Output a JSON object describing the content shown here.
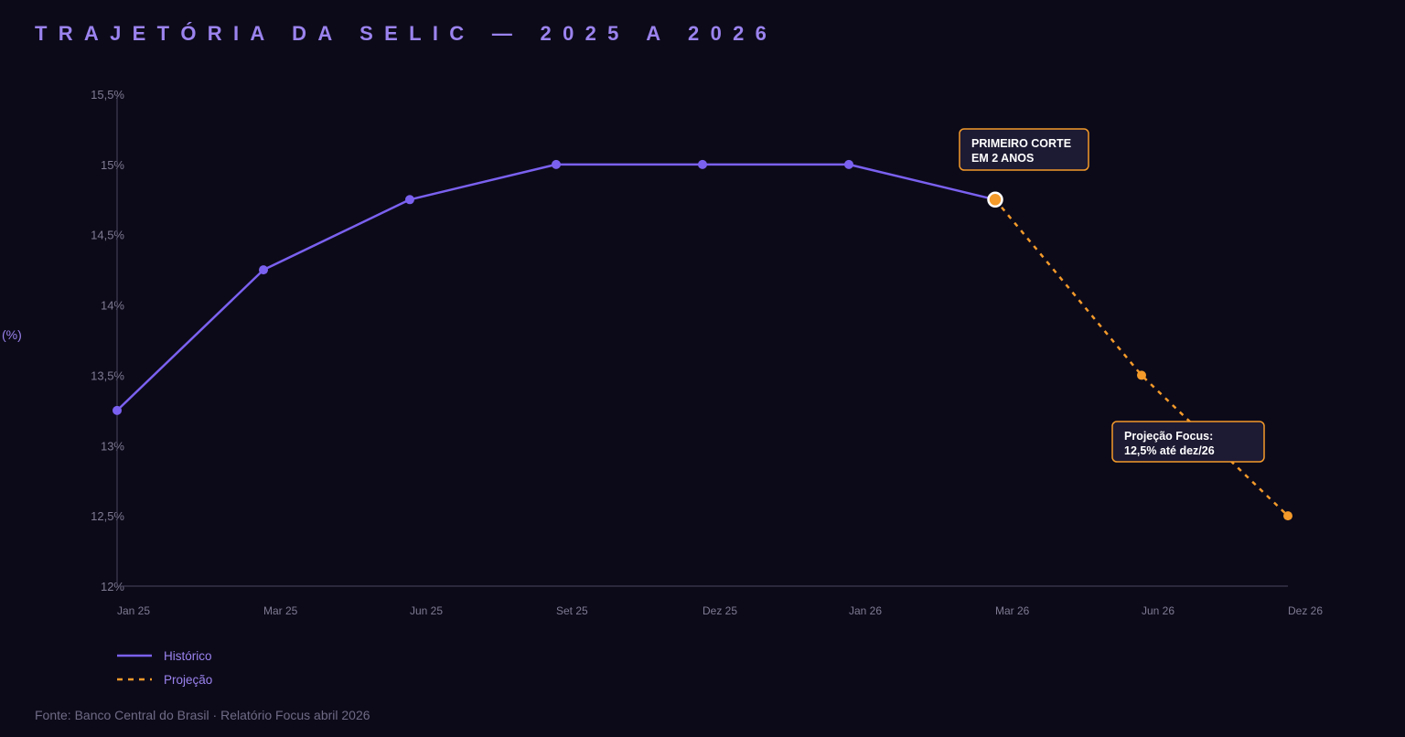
{
  "title": "TRAJETÓRIA DA SELIC — 2025 A 2026",
  "source": "Fonte: Banco Central do Brasil · Relatório Focus abril 2026",
  "colors": {
    "background": "#0c0a19",
    "historico": "#7b61f0",
    "projecao": "#f39a2a",
    "annotation_fill": "#1d1a33",
    "annotation_border": "#f39a2a",
    "axis": "#4a4660"
  },
  "chart_data": {
    "type": "line",
    "ylabel": "(%)",
    "ylim": [
      12,
      15.5
    ],
    "y_ticks": [
      "12%",
      "12,5%",
      "13%",
      "13,5%",
      "14%",
      "14,5%",
      "15%",
      "15,5%"
    ],
    "y_tick_values": [
      12,
      12.5,
      13,
      13.5,
      14,
      14.5,
      15,
      15.5
    ],
    "x_ticks": [
      "Jan 25",
      "Mar 25",
      "Jun 25",
      "Set 25",
      "Dez 25",
      "Jan 26",
      "Mar 26",
      "Jun 26",
      "Dez 26"
    ],
    "grid": false,
    "legend_position": "bottom-left",
    "series": [
      {
        "name": "Histórico",
        "style": "solid",
        "color": "#7b61f0",
        "points": [
          {
            "x": "Jan 25",
            "y": 13.25
          },
          {
            "x": "Mar 25",
            "y": 14.25
          },
          {
            "x": "Jun 25",
            "y": 14.75
          },
          {
            "x": "Set 25",
            "y": 15.0
          },
          {
            "x": "Dez 25",
            "y": 15.0
          },
          {
            "x": "Jan 26",
            "y": 15.0
          },
          {
            "x": "Mar 26",
            "y": 14.75
          }
        ]
      },
      {
        "name": "Projeção",
        "style": "dashed",
        "color": "#f39a2a",
        "points": [
          {
            "x": "Mar 26",
            "y": 14.75
          },
          {
            "x": "Jun 26",
            "y": 13.5
          },
          {
            "x": "Dez 26",
            "y": 12.5
          }
        ]
      }
    ],
    "annotations": [
      {
        "lines": [
          "PRIMEIRO CORTE",
          "EM 2 ANOS"
        ],
        "target": {
          "x": "Mar 26",
          "y": 14.75
        }
      },
      {
        "lines": [
          "Projeção Focus:",
          "12,5% até dez/26"
        ],
        "target": {
          "x": "Jun 26",
          "y": 13.5
        }
      }
    ]
  }
}
